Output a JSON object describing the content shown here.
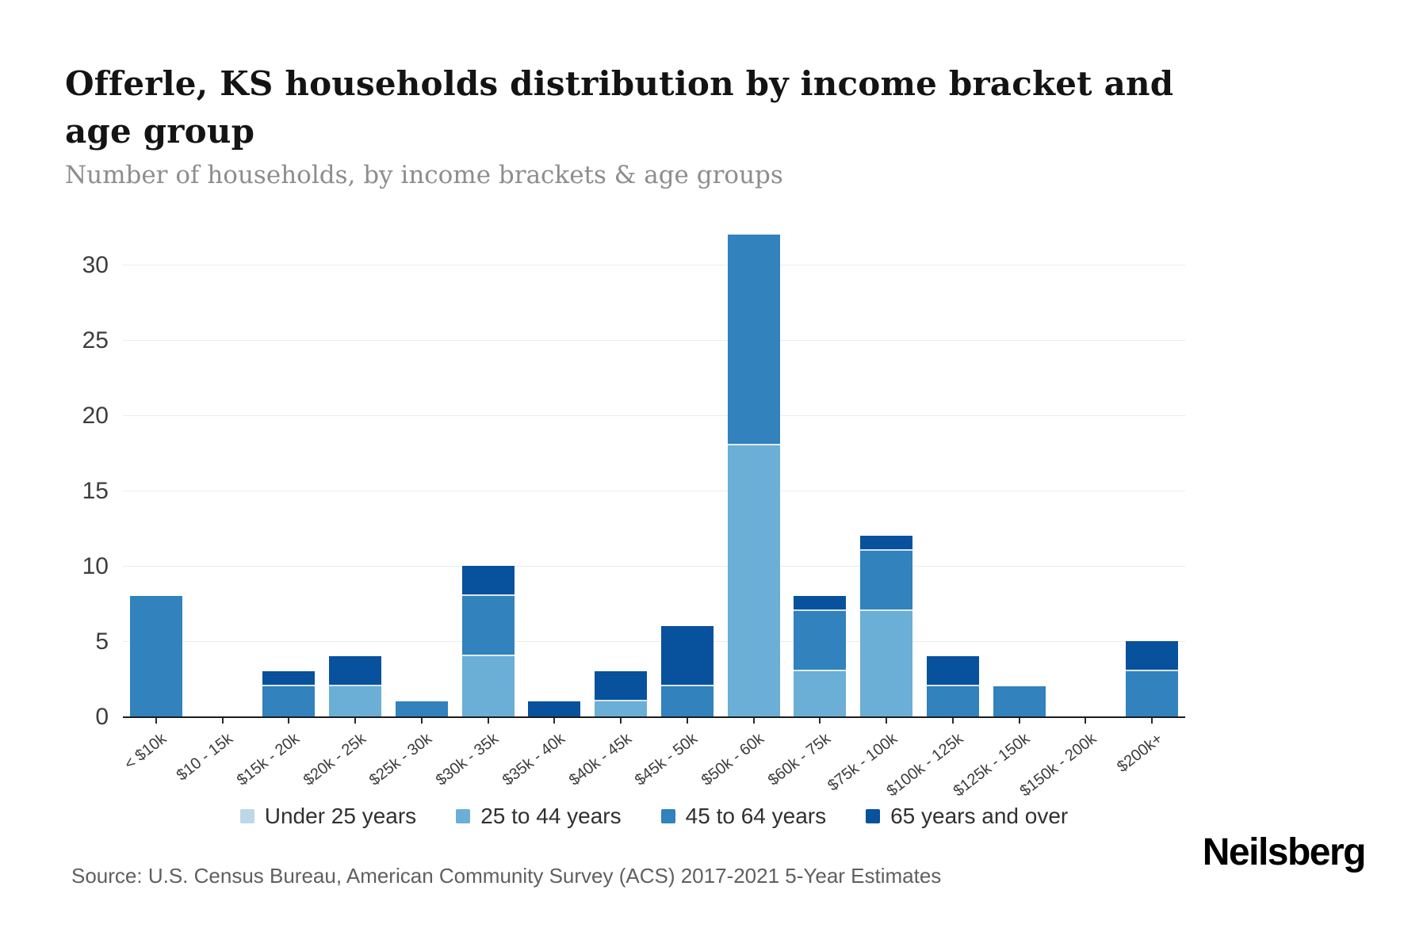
{
  "header": {
    "title": "Offerle, KS households distribution by income bracket and age group",
    "subtitle": "Number of households, by income brackets & age groups"
  },
  "chart_data": {
    "type": "bar",
    "stacked": true,
    "orientation": "vertical",
    "title": "Offerle, KS households distribution by income bracket and age group",
    "xlabel": "",
    "ylabel": "Number of households",
    "ylim": [
      0,
      33
    ],
    "yticks": [
      0,
      5,
      10,
      15,
      20,
      25,
      30
    ],
    "grid": true,
    "legend_position": "bottom",
    "categories": [
      "< $10k",
      "$10 - 15k",
      "$15k - 20k",
      "$20k - 25k",
      "$25k - 30k",
      "$30k - 35k",
      "$35k - 40k",
      "$40k - 45k",
      "$45k - 50k",
      "$50k - 60k",
      "$60k - 75k",
      "$75k - 100k",
      "$100k - 125k",
      "$125k - 150k",
      "$150k - 200k",
      "$200k+"
    ],
    "series": [
      {
        "name": "Under 25 years",
        "color": "#bdd7e7",
        "values": [
          0,
          0,
          0,
          0,
          0,
          0,
          0,
          0,
          0,
          0,
          0,
          0,
          0,
          0,
          0,
          0
        ]
      },
      {
        "name": "25 to 44 years",
        "color": "#6baed6",
        "values": [
          0,
          0,
          0,
          2,
          0,
          4,
          0,
          1,
          0,
          18,
          3,
          7,
          0,
          0,
          0,
          0
        ]
      },
      {
        "name": "45 to 64 years",
        "color": "#3182bd",
        "values": [
          8,
          0,
          2,
          0,
          1,
          4,
          0,
          0,
          2,
          14,
          4,
          4,
          2,
          2,
          0,
          3
        ]
      },
      {
        "name": "65 years and over",
        "color": "#08519c",
        "values": [
          0,
          0,
          1,
          2,
          0,
          2,
          1,
          2,
          4,
          0,
          1,
          1,
          2,
          0,
          0,
          2
        ]
      }
    ],
    "totals": [
      8,
      0,
      3,
      4,
      1,
      10,
      1,
      3,
      6,
      32,
      8,
      12,
      4,
      2,
      0,
      5
    ]
  },
  "footer": {
    "source": "Source: U.S. Census Bureau, American Community Survey (ACS) 2017-2021 5-Year Estimates",
    "brand": "Neilsberg"
  }
}
